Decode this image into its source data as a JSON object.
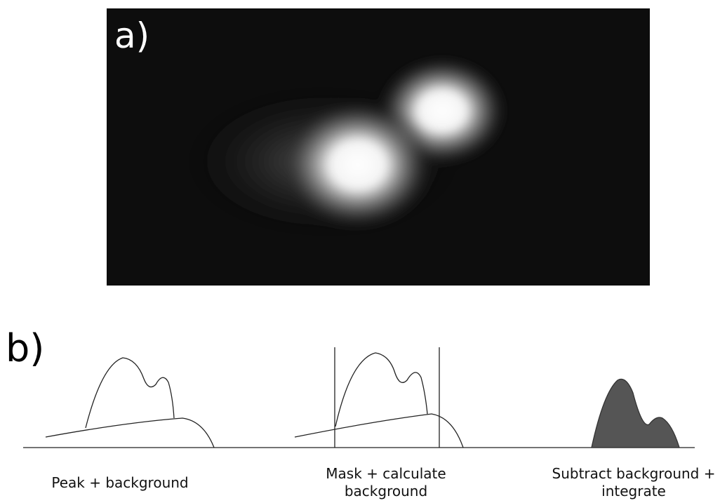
{
  "panel_a": {
    "label": "a)"
  },
  "panel_b": {
    "label": "b)",
    "steps": [
      {
        "caption": [
          "Peak + background"
        ]
      },
      {
        "caption": [
          "Mask + calculate",
          "background"
        ]
      },
      {
        "caption": [
          "Subtract background +",
          "integrate"
        ]
      }
    ]
  }
}
